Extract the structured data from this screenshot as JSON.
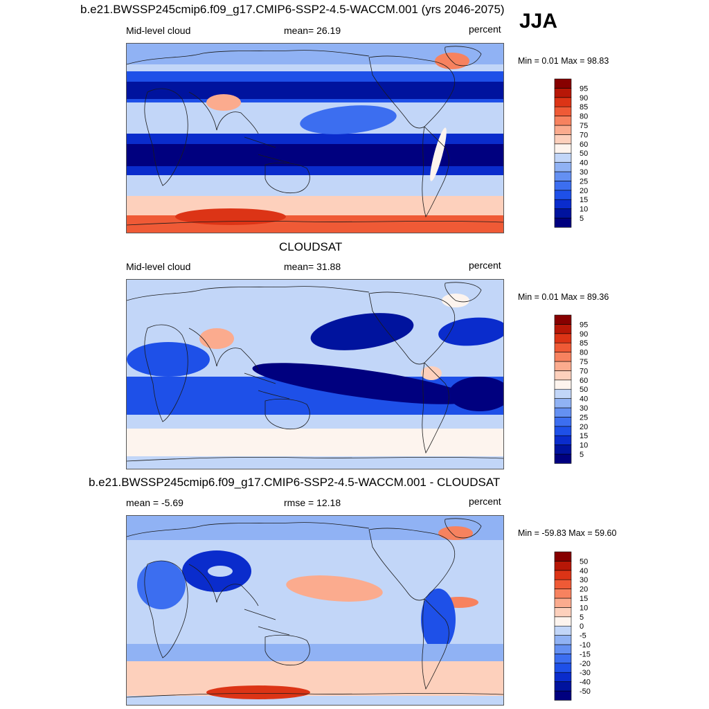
{
  "season": "JJA",
  "panels": [
    {
      "title": "b.e21.BWSSP245cmip6.f09_g17.CMIP6-SSP2-4.5-WACCM.001 (yrs 2046-2075)",
      "left_label": "Mid-level cloud",
      "center_label": "mean=  26.19",
      "right_label": "percent",
      "minmax": "Min =   0.01 Max =  98.83",
      "colorbar_levels": [
        "5",
        "10",
        "15",
        "20",
        "25",
        "30",
        "40",
        "50",
        "60",
        "70",
        "75",
        "80",
        "85",
        "90",
        "95"
      ]
    },
    {
      "title": "CLOUDSAT",
      "left_label": "Mid-level cloud",
      "center_label": "mean=  31.88",
      "right_label": "percent",
      "minmax": "Min =   0.01 Max =  89.36",
      "colorbar_levels": [
        "5",
        "10",
        "15",
        "20",
        "25",
        "30",
        "40",
        "50",
        "60",
        "70",
        "75",
        "80",
        "85",
        "90",
        "95"
      ]
    },
    {
      "title": "b.e21.BWSSP245cmip6.f09_g17.CMIP6-SSP2-4.5-WACCM.001 - CLOUDSAT",
      "left_label": "mean =  -5.69",
      "center_label": "rmse =  12.18",
      "right_label": "percent",
      "minmax": "Min = -59.83 Max =  59.60",
      "colorbar_levels": [
        "-50",
        "-40",
        "-30",
        "-20",
        "-15",
        "-10",
        "-5",
        "0",
        "5",
        "10",
        "15",
        "20",
        "30",
        "40",
        "50"
      ]
    }
  ],
  "colors": {
    "palette": [
      "#00007f",
      "#00139e",
      "#0a2ccc",
      "#1e50e8",
      "#3c6ef0",
      "#6490f2",
      "#90b2f4",
      "#c2d6f8",
      "#fdf4ee",
      "#fdd0bc",
      "#fbab8e",
      "#f7825f",
      "#ef5a36",
      "#dc3416",
      "#b71707",
      "#870000"
    ],
    "coastline": "#1a1a1a"
  }
}
